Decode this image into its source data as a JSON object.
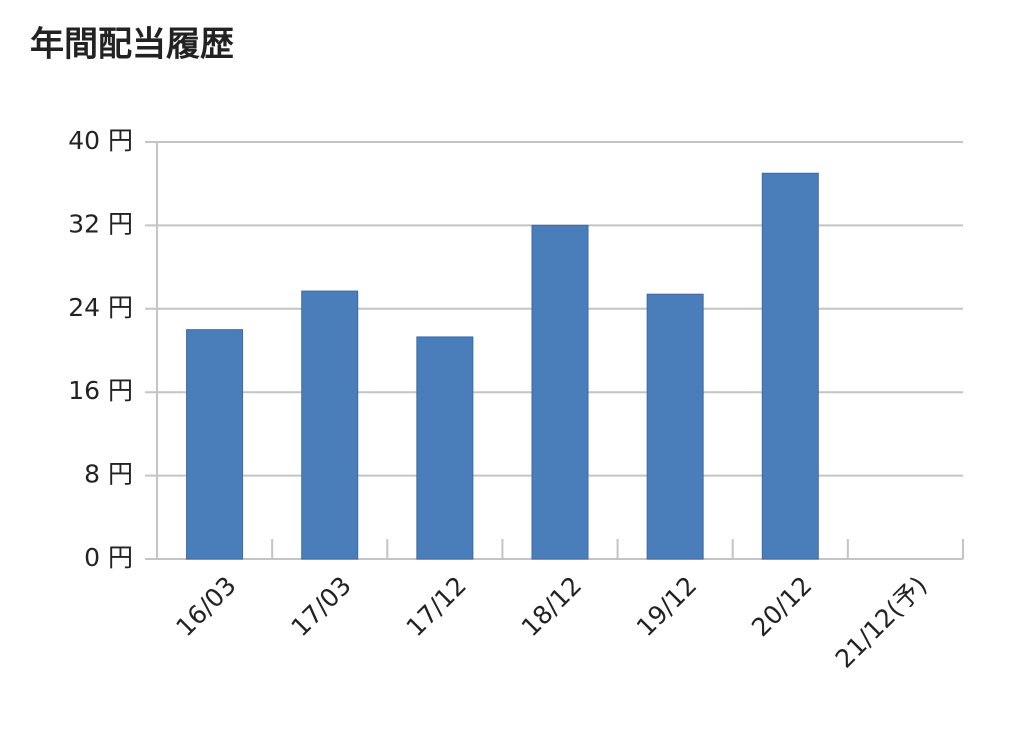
{
  "chart_data": {
    "type": "bar",
    "title": "年間配当履歴",
    "categories": [
      "16/03",
      "17/03",
      "17/12",
      "18/12",
      "19/12",
      "20/12",
      "21/12(予)"
    ],
    "values": [
      22,
      25.7,
      21.3,
      32,
      25.4,
      37,
      null
    ],
    "color": "#4a7ebb",
    "ylim": [
      0,
      40
    ],
    "yticks": [
      {
        "value": 0,
        "label": "0 円"
      },
      {
        "value": 8,
        "label": "8 円"
      },
      {
        "value": 16,
        "label": "16 円"
      },
      {
        "value": 24,
        "label": "24 円"
      },
      {
        "value": 32,
        "label": "32 円"
      },
      {
        "value": 40,
        "label": "40 円"
      }
    ],
    "grid": true
  }
}
